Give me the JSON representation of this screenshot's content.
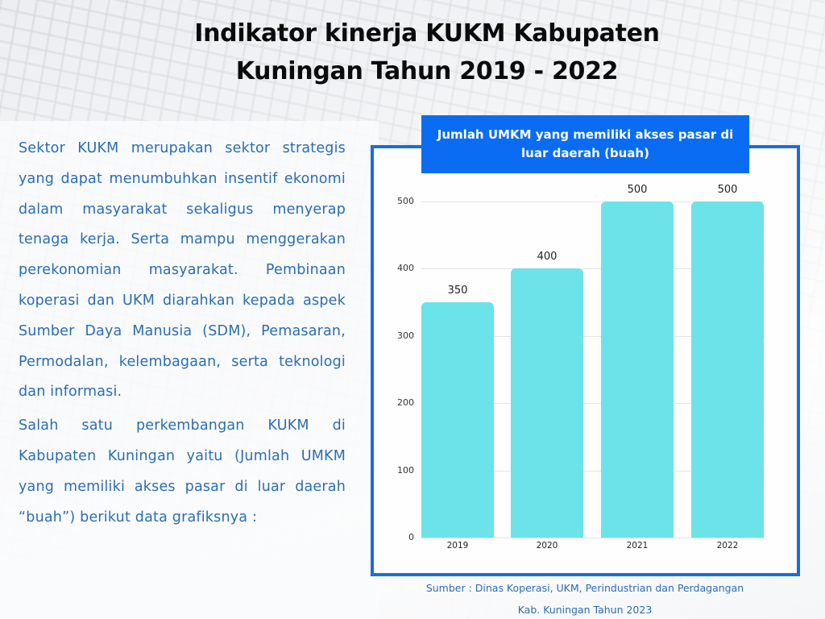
{
  "page": {
    "title_line1": "Indikator kinerja KUKM Kabupaten",
    "title_line2": "Kuningan Tahun 2019 - 2022"
  },
  "description": {
    "paragraph1": "Sektor KUKM merupakan sektor strategis yang dapat menumbuhkan insentif ekonomi dalam masyarakat sekaligus menyerap tenaga kerja. Serta mampu menggerakan perekonomian masyarakat. Pembinaan koperasi dan UKM diarahkan kepada aspek Sumber  Daya Manusia (SDM), Pemasaran, Permodalan, kelembagaan, serta teknologi dan informasi.",
    "paragraph2": "Salah satu perkembangan KUKM di Kabupaten Kuningan yaitu (Jumlah UMKM yang memiliki akses pasar di luar daerah “buah”) berikut data grafiksnya :"
  },
  "source": {
    "line1": "Sumber : Dinas Koperasi, UKM, Perindustrian dan Perdagangan",
    "line2": "Kab. Kuningan Tahun 2023"
  },
  "colors": {
    "frame_border": "#1a6be0",
    "banner_bg": "#0a6cf2",
    "bar_fill": "#6ce3e8",
    "body_text": "#2a6db3"
  },
  "chart_data": {
    "type": "bar",
    "title": "Jumlah UMKM yang memiliki akses pasar di luar daerah (buah)",
    "categories": [
      "2019",
      "2020",
      "2021",
      "2022"
    ],
    "values": [
      350,
      400,
      500,
      500
    ],
    "data_labels": [
      "350",
      "400",
      "500",
      "500"
    ],
    "xlabel": "",
    "ylabel": "",
    "ylim": [
      0,
      500
    ],
    "yticks": [
      "0",
      "100",
      "200",
      "300",
      "400",
      "500"
    ],
    "grid": true,
    "legend": "none"
  }
}
